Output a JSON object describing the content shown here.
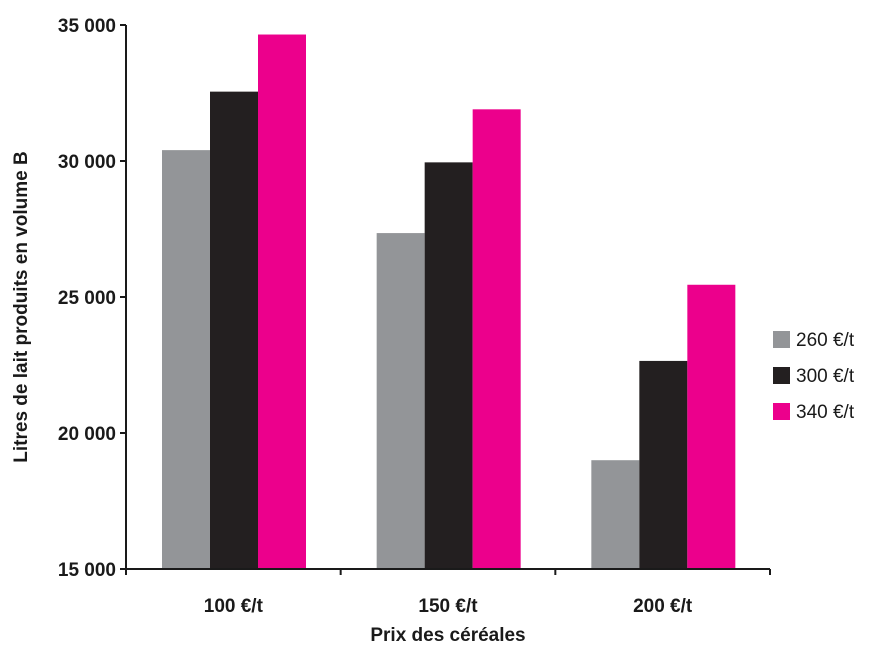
{
  "chart_data": {
    "type": "bar",
    "title": "",
    "xlabel": "Prix des céréales",
    "ylabel": "Litres de lait produits en volume B",
    "categories": [
      "100 €/t",
      "150 €/t",
      "200 €/t"
    ],
    "ylim": [
      15000,
      35000
    ],
    "yticks": [
      15000,
      20000,
      25000,
      30000,
      35000
    ],
    "ytick_labels": [
      "15 000",
      "20 000",
      "25 000",
      "30 000",
      "35 000"
    ],
    "series": [
      {
        "name": "260 €/t",
        "color": "#939598",
        "values": [
          30400,
          27350,
          19000
        ]
      },
      {
        "name": "300 €/t",
        "color": "#231f20",
        "values": [
          32550,
          29950,
          22650
        ]
      },
      {
        "name": "340 €/t",
        "color": "#ec008c",
        "values": [
          34650,
          31900,
          25450
        ]
      }
    ],
    "grid": false,
    "legend_position": "right"
  }
}
